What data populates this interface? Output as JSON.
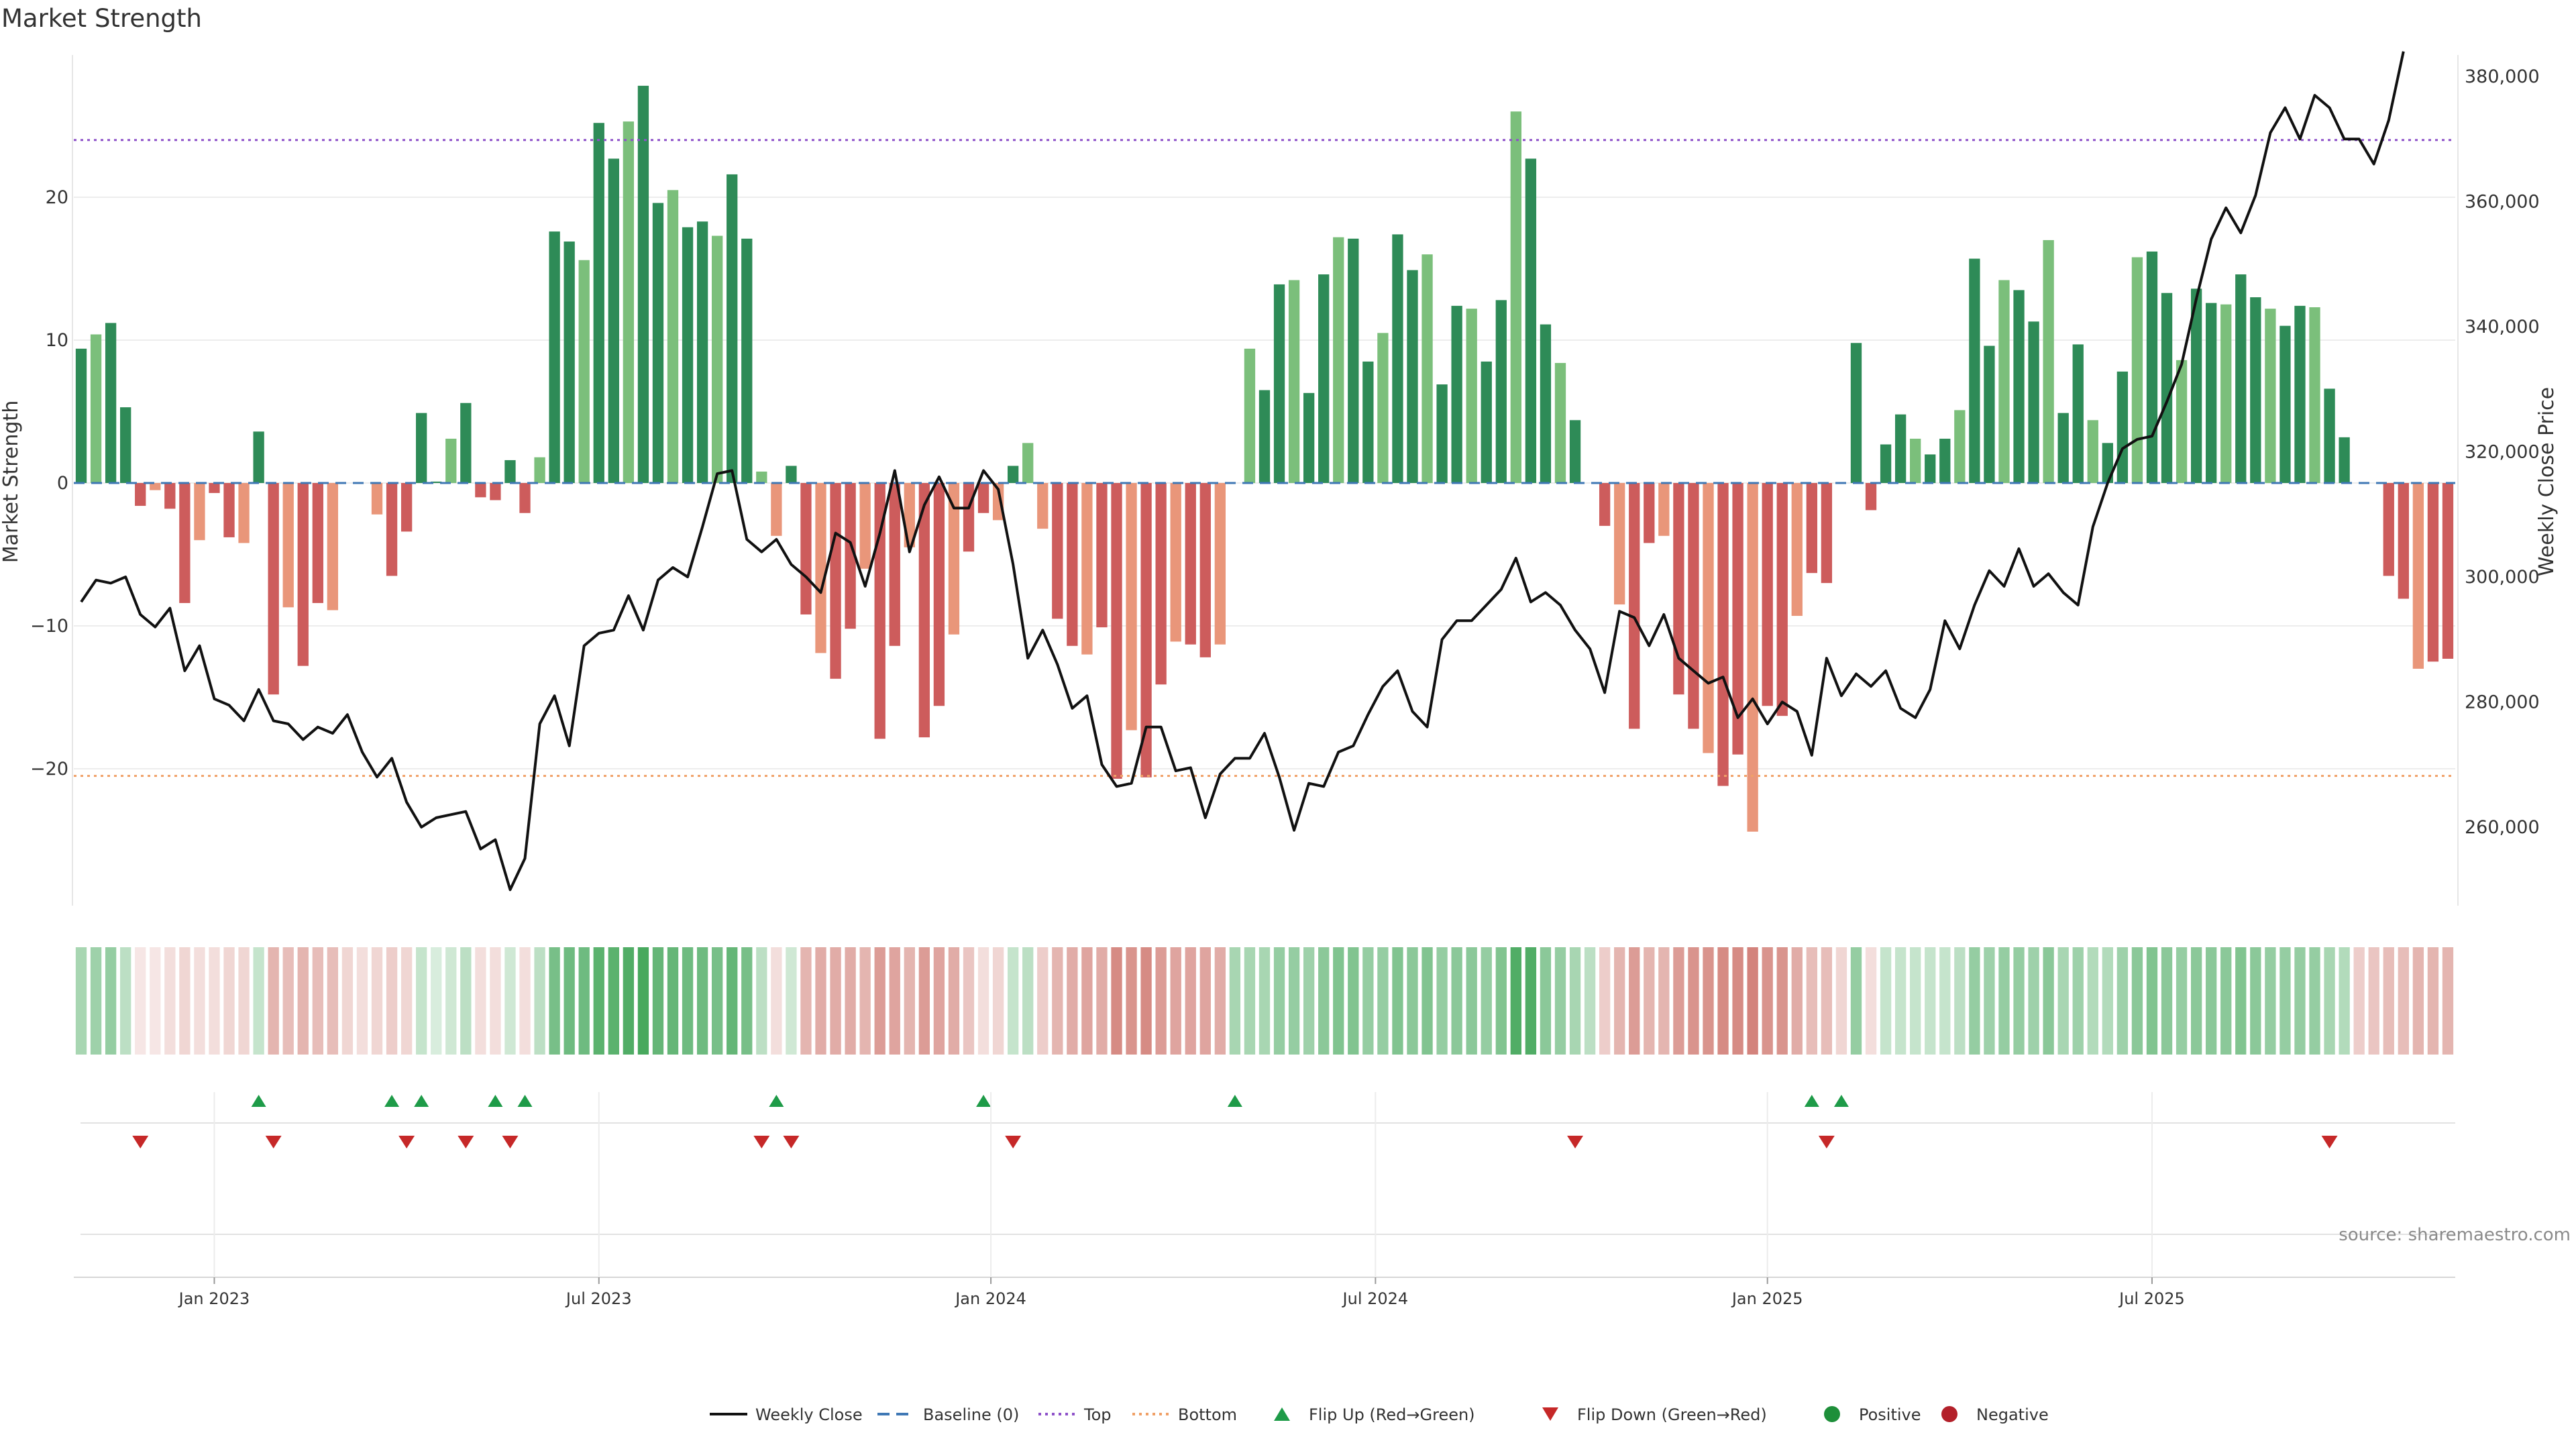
{
  "chart_data": {
    "type": "bar",
    "title": "Market Strength",
    "ylabel": "Market Strength",
    "y2label": "Weekly Close Price",
    "ylim": [
      -30,
      30
    ],
    "y2lim": [
      245000,
      381000
    ],
    "yticks": [
      {
        "value": 20,
        "label": "20"
      },
      {
        "value": 10,
        "label": "10"
      },
      {
        "value": 0,
        "label": "0"
      },
      {
        "value": -10,
        "label": "−10"
      },
      {
        "value": -20,
        "label": "−20"
      }
    ],
    "y2ticks": [
      {
        "value": 380000,
        "label": "380,000"
      },
      {
        "value": 360000,
        "label": "360,000"
      },
      {
        "value": 340000,
        "label": "340,000"
      },
      {
        "value": 320000,
        "label": "320,000"
      },
      {
        "value": 300000,
        "label": "300,000"
      },
      {
        "value": 280000,
        "label": "280,000"
      },
      {
        "value": 260000,
        "label": "260,000"
      }
    ],
    "xticks": [
      {
        "index": 9,
        "label": "Jan 2023"
      },
      {
        "index": 35,
        "label": "Jul 2023"
      },
      {
        "index": 61.5,
        "label": "Jan 2024"
      },
      {
        "index": 87.5,
        "label": "Jul 2024"
      },
      {
        "index": 114,
        "label": "Jan 2025"
      },
      {
        "index": 140,
        "label": "Jul 2025"
      }
    ],
    "top_threshold": 24,
    "bottom_threshold": -20.5,
    "strength": [
      9.4,
      10.4,
      11.2,
      5.3,
      -1.6,
      -0.5,
      -1.8,
      -8.4,
      -4,
      -0.7,
      -3.8,
      -4.2,
      3.6,
      -14.8,
      -8.7,
      -12.8,
      -8.4,
      -8.9,
      0,
      0,
      -2.2,
      -6.5,
      -3.4,
      4.9,
      0.1,
      3.1,
      5.6,
      -1,
      -1.2,
      1.6,
      -2.1,
      1.8,
      17.6,
      16.9,
      15.6,
      25.2,
      22.7,
      25.3,
      27.8,
      19.6,
      20.5,
      17.9,
      18.3,
      17.3,
      21.6,
      17.1,
      0.8,
      -3.7,
      1.2,
      -9.2,
      -11.9,
      -13.7,
      -10.2,
      -6,
      -17.9,
      -11.4,
      -4.5,
      -17.8,
      -15.6,
      -10.6,
      -4.8,
      -2.1,
      -2.6,
      1.2,
      2.8,
      -3.2,
      -9.5,
      -11.4,
      -12,
      -10.1,
      -20.7,
      -17.3,
      -20.6,
      -14.1,
      -11.1,
      -11.3,
      -12.2,
      -11.3,
      0,
      9.4,
      6.5,
      13.9,
      14.2,
      6.3,
      14.6,
      17.2,
      17.1,
      8.5,
      10.5,
      17.4,
      14.9,
      16,
      6.9,
      12.4,
      12.2,
      8.5,
      12.8,
      26,
      22.7,
      11.1,
      8.4,
      4.4,
      0,
      -3,
      -8.5,
      -17.2,
      -4.2,
      -3.7,
      -14.8,
      -17.2,
      -18.9,
      -21.2,
      -19,
      -24.4,
      -15.6,
      -16.3,
      -9.3,
      -6.3,
      -7,
      0,
      9.8,
      -1.9,
      2.7,
      4.8,
      3.1,
      2,
      3.1,
      5.1,
      15.7,
      9.6,
      14.2,
      13.5,
      11.3,
      17,
      4.9,
      9.7,
      4.4,
      2.8,
      7.8,
      15.8,
      16.2,
      13.3,
      8.6,
      13.6,
      12.6,
      12.5,
      14.6,
      13,
      12.2,
      11,
      12.4,
      12.3,
      6.6,
      3.2,
      0,
      0,
      -6.5,
      -8.1,
      -13,
      -12.5,
      -12.3
    ],
    "heat": [
      0.45,
      0.5,
      0.55,
      0.35,
      -0.15,
      -0.15,
      -0.2,
      -0.25,
      -0.2,
      -0.2,
      -0.25,
      -0.25,
      0.3,
      -0.45,
      -0.4,
      -0.45,
      -0.4,
      -0.4,
      -0.25,
      -0.2,
      -0.25,
      -0.3,
      -0.25,
      0.3,
      0.2,
      0.25,
      0.35,
      -0.2,
      -0.2,
      0.25,
      -0.2,
      0.35,
      0.7,
      0.75,
      0.75,
      0.85,
      0.85,
      0.9,
      0.95,
      0.8,
      0.8,
      0.75,
      0.75,
      0.7,
      0.8,
      0.7,
      0.35,
      -0.2,
      0.25,
      -0.45,
      -0.5,
      -0.5,
      -0.5,
      -0.45,
      -0.6,
      -0.55,
      -0.45,
      -0.6,
      -0.55,
      -0.5,
      -0.35,
      -0.2,
      -0.25,
      0.3,
      0.35,
      -0.3,
      -0.45,
      -0.5,
      -0.55,
      -0.5,
      -0.7,
      -0.65,
      -0.7,
      -0.6,
      -0.55,
      -0.55,
      -0.55,
      -0.5,
      0.45,
      0.45,
      0.45,
      0.55,
      0.55,
      0.5,
      0.6,
      0.65,
      0.65,
      0.55,
      0.55,
      0.65,
      0.6,
      0.65,
      0.55,
      0.6,
      0.6,
      0.55,
      0.65,
      0.9,
      0.9,
      0.6,
      0.55,
      0.45,
      0.35,
      -0.3,
      -0.45,
      -0.6,
      -0.45,
      -0.45,
      -0.6,
      -0.65,
      -0.65,
      -0.7,
      -0.7,
      -0.75,
      -0.65,
      -0.65,
      -0.5,
      -0.4,
      -0.4,
      -0.25,
      0.55,
      -0.2,
      0.3,
      0.3,
      0.3,
      0.3,
      0.3,
      0.35,
      0.55,
      0.5,
      0.55,
      0.55,
      0.5,
      0.6,
      0.45,
      0.5,
      0.4,
      0.4,
      0.5,
      0.6,
      0.65,
      0.6,
      0.55,
      0.6,
      0.6,
      0.6,
      0.65,
      0.6,
      0.55,
      0.55,
      0.55,
      0.55,
      0.45,
      0.4,
      -0.3,
      -0.35,
      -0.4,
      -0.4,
      -0.45,
      -0.45,
      -0.45
    ],
    "price": [
      296000,
      299500,
      299000,
      300000,
      294000,
      292000,
      295000,
      285000,
      289000,
      280500,
      279500,
      277000,
      282000,
      277000,
      276500,
      274000,
      276000,
      275000,
      278000,
      272000,
      268000,
      271000,
      264000,
      260000,
      261500,
      262000,
      262500,
      256500,
      258000,
      250000,
      255000,
      276500,
      281000,
      273000,
      289000,
      291000,
      291500,
      297000,
      291500,
      299500,
      301500,
      300000,
      308000,
      316500,
      317000,
      306000,
      304000,
      306000,
      302000,
      300000,
      297500,
      307000,
      305500,
      298500,
      307000,
      317000,
      304000,
      311500,
      316000,
      311000,
      311000,
      317000,
      314000,
      302000,
      287000,
      291500,
      286000,
      279000,
      281000,
      270000,
      266500,
      267000,
      276000,
      276000,
      269000,
      269500,
      261500,
      268500,
      271000,
      271000,
      275000,
      268000,
      259500,
      267000,
      266500,
      272000,
      273000,
      278000,
      282500,
      285000,
      278500,
      276000,
      290000,
      293000,
      293000,
      295500,
      298000,
      303000,
      296000,
      297500,
      295500,
      291500,
      288500,
      281500,
      294500,
      293500,
      289000,
      294000,
      287000,
      285000,
      283000,
      284000,
      277500,
      280500,
      276500,
      280000,
      278500,
      271500,
      287000,
      281000,
      284500,
      282500,
      285000,
      279000,
      277500,
      282000,
      293000,
      288500,
      295500,
      301000,
      298500,
      304500,
      298500,
      300500,
      297500,
      295500,
      308000,
      315000,
      320500,
      322000,
      322500,
      328000,
      334000,
      344500,
      354000,
      359000,
      355000,
      361000,
      371000,
      375000,
      370000,
      377000,
      375000,
      370000,
      370000,
      366000,
      373000,
      384000
    ]
  },
  "legend": [
    {
      "kind": "line-solid",
      "color": "#111111",
      "label": "Weekly Close"
    },
    {
      "kind": "line-dashed",
      "color": "#3f78b5",
      "label": "Baseline (0)"
    },
    {
      "kind": "line-dotted",
      "color": "#8e52c9",
      "label": "Top"
    },
    {
      "kind": "line-dotted",
      "color": "#f0a067",
      "label": "Bottom"
    },
    {
      "kind": "tri-up",
      "color": "#1e9b48",
      "label": "Flip Up (Red→Green)"
    },
    {
      "kind": "tri-down",
      "color": "#c62828",
      "label": "Flip Down (Green→Red)"
    },
    {
      "kind": "dot",
      "color": "#1e8f3a",
      "label": "Positive"
    },
    {
      "kind": "dot",
      "color": "#b3202a",
      "label": "Negative"
    }
  ],
  "source": "source: sharemaestro.com",
  "colors": {
    "strong_green": "#2e8b57",
    "light_green": "#7bbf7b",
    "strong_red": "#cd5c5c",
    "light_red": "#e9967a",
    "top_line": "#8e52c9",
    "bottom_line": "#f0a067",
    "baseline": "#3f78b5",
    "price_line": "#111111",
    "flip_up": "#1e9b48",
    "flip_down": "#c62828",
    "heat_green": "#3ea455",
    "heat_red": "#c45a50"
  }
}
